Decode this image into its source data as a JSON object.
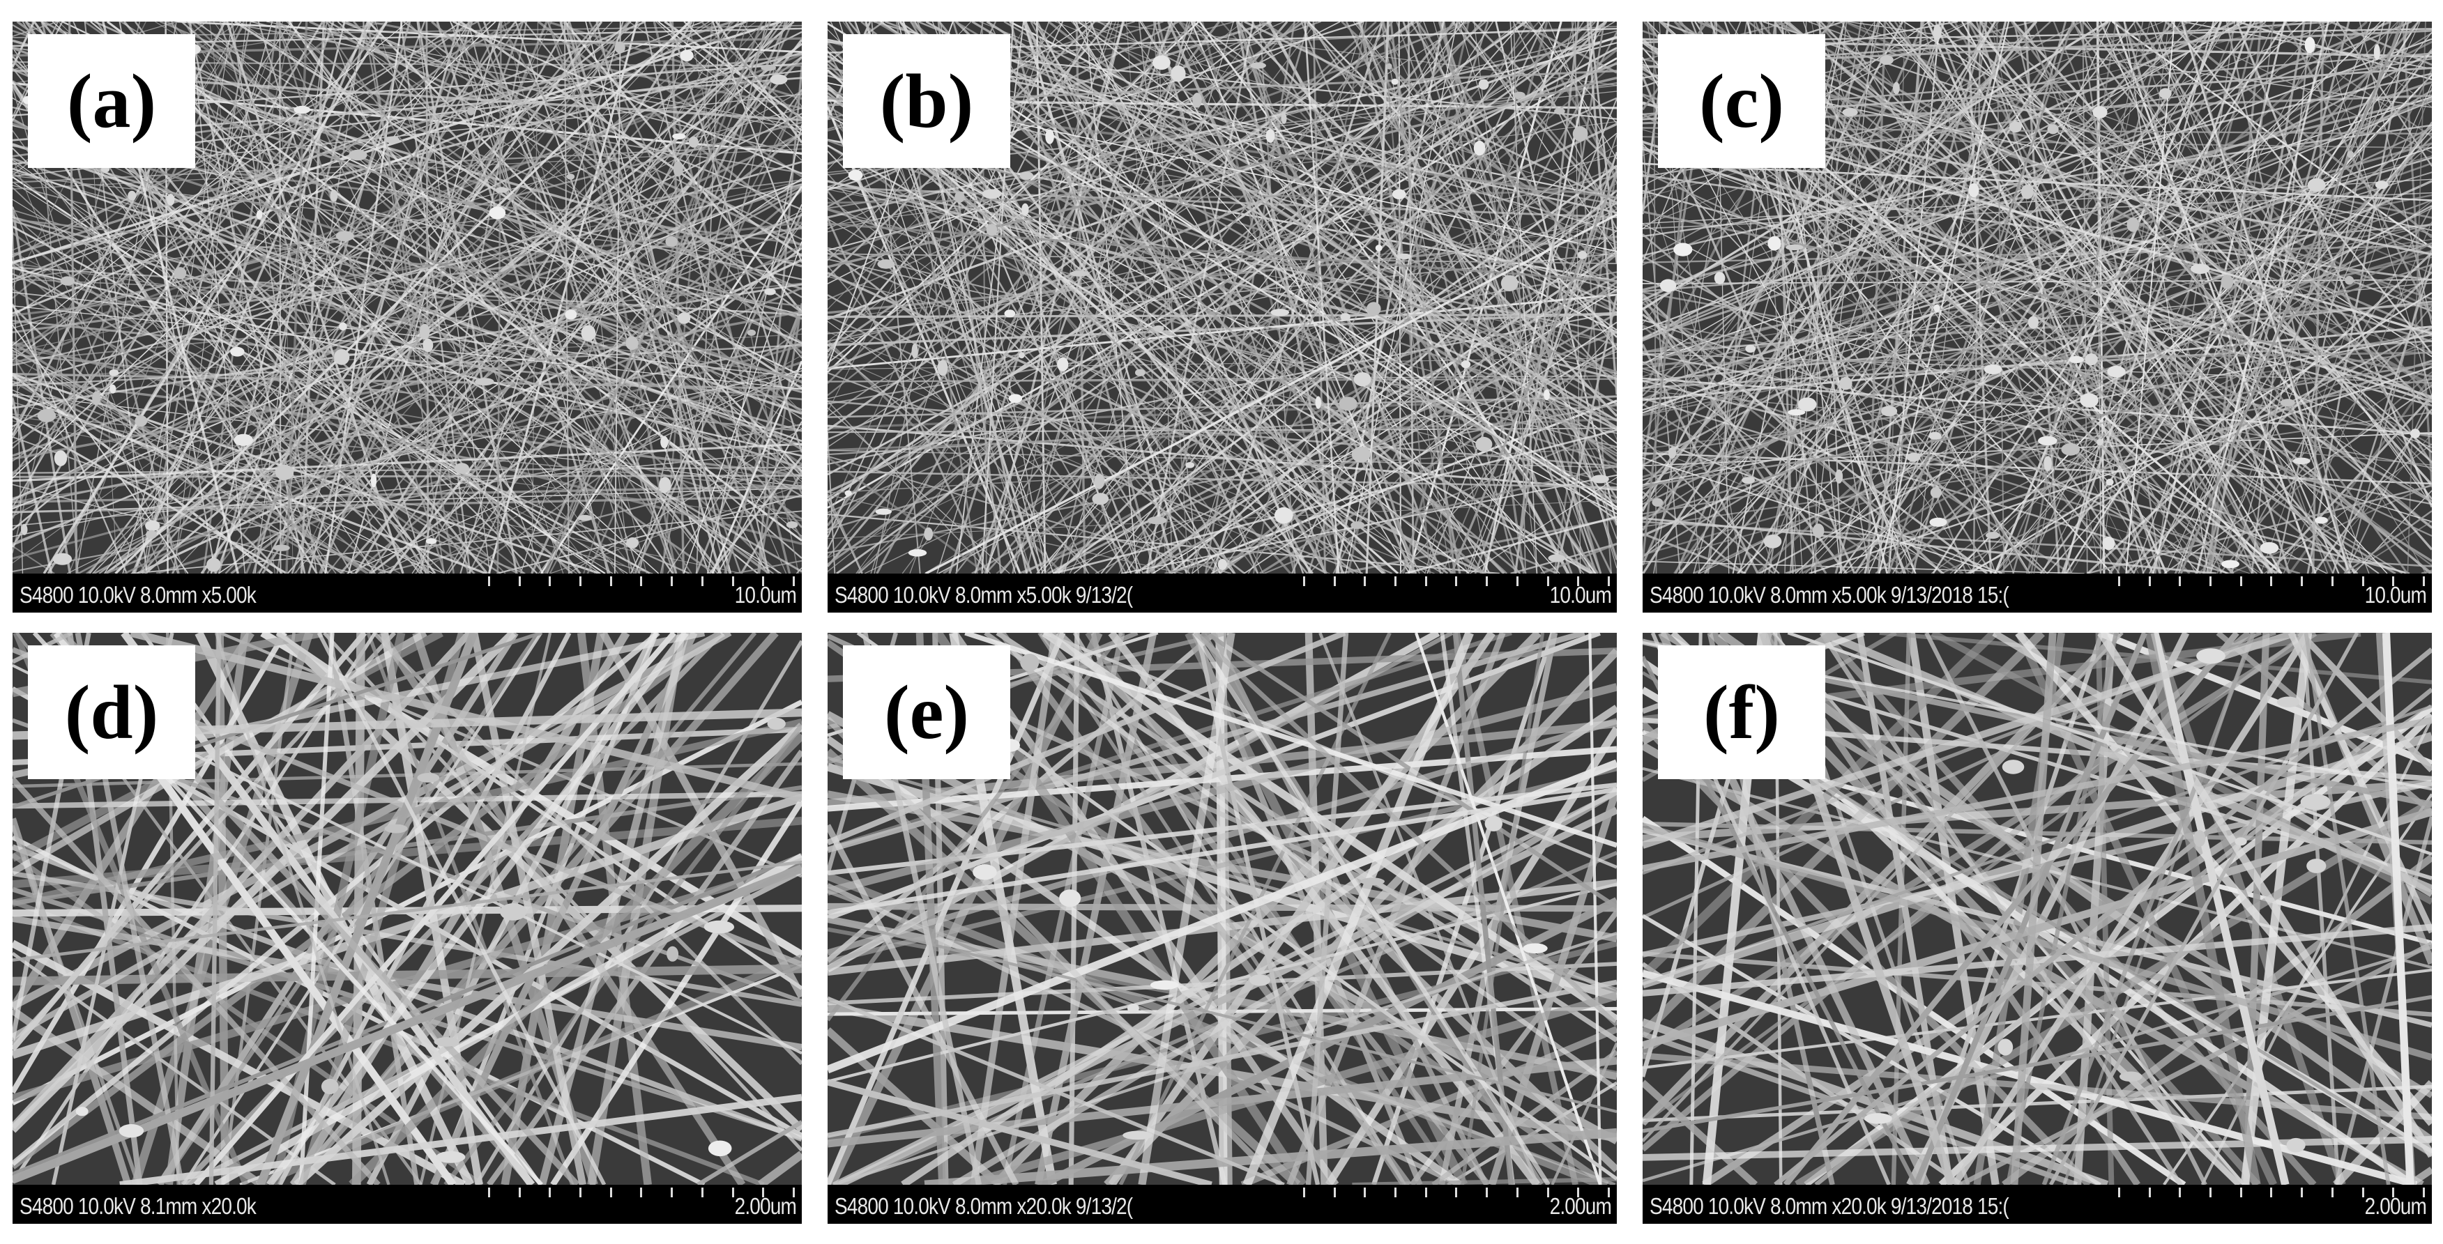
{
  "panels": [
    {
      "label": "(a)",
      "info": "S4800 10.0kV 8.0mm x5.00k",
      "scale": "10.0um",
      "magnification": "low"
    },
    {
      "label": "(b)",
      "info": "S4800 10.0kV 8.0mm x5.00k 9/13/2(",
      "scale": "10.0um",
      "magnification": "low"
    },
    {
      "label": "(c)",
      "info": "S4800 10.0kV 8.0mm x5.00k 9/13/2018 15:(",
      "scale": "10.0um",
      "magnification": "low"
    },
    {
      "label": "(d)",
      "info": "S4800 10.0kV 8.1mm x20.0k",
      "scale": "2.00um",
      "magnification": "high"
    },
    {
      "label": "(e)",
      "info": "S4800 10.0kV 8.0mm x20.0k 9/13/2(",
      "scale": "2.00um",
      "magnification": "high"
    },
    {
      "label": "(f)",
      "info": "S4800 10.0kV 8.0mm x20.0k 9/13/2018 15:(",
      "scale": "2.00um",
      "magnification": "high"
    }
  ]
}
